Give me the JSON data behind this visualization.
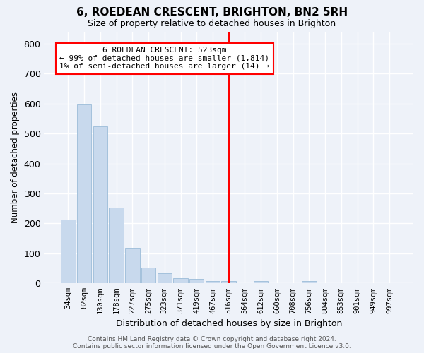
{
  "title": "6, ROEDEAN CRESCENT, BRIGHTON, BN2 5RH",
  "subtitle": "Size of property relative to detached houses in Brighton",
  "xlabel": "Distribution of detached houses by size in Brighton",
  "ylabel": "Number of detached properties",
  "bar_color": "#c8d9ed",
  "bar_edgecolor": "#9bbcd8",
  "background_color": "#eef2f9",
  "grid_color": "#ffffff",
  "categories": [
    "34sqm",
    "82sqm",
    "130sqm",
    "178sqm",
    "227sqm",
    "275sqm",
    "323sqm",
    "371sqm",
    "419sqm",
    "467sqm",
    "516sqm",
    "564sqm",
    "612sqm",
    "660sqm",
    "708sqm",
    "756sqm",
    "804sqm",
    "853sqm",
    "901sqm",
    "949sqm",
    "997sqm"
  ],
  "values": [
    213,
    598,
    523,
    253,
    118,
    52,
    33,
    18,
    14,
    8,
    7,
    0,
    8,
    0,
    0,
    8,
    0,
    0,
    0,
    0,
    0
  ],
  "ylim": [
    0,
    840
  ],
  "yticks": [
    0,
    100,
    200,
    300,
    400,
    500,
    600,
    700,
    800
  ],
  "property_line_x": 10,
  "annotation_text": "6 ROEDEAN CRESCENT: 523sqm\n← 99% of detached houses are smaller (1,814)\n1% of semi-detached houses are larger (14) →",
  "footer_line1": "Contains HM Land Registry data © Crown copyright and database right 2024.",
  "footer_line2": "Contains public sector information licensed under the Open Government Licence v3.0."
}
